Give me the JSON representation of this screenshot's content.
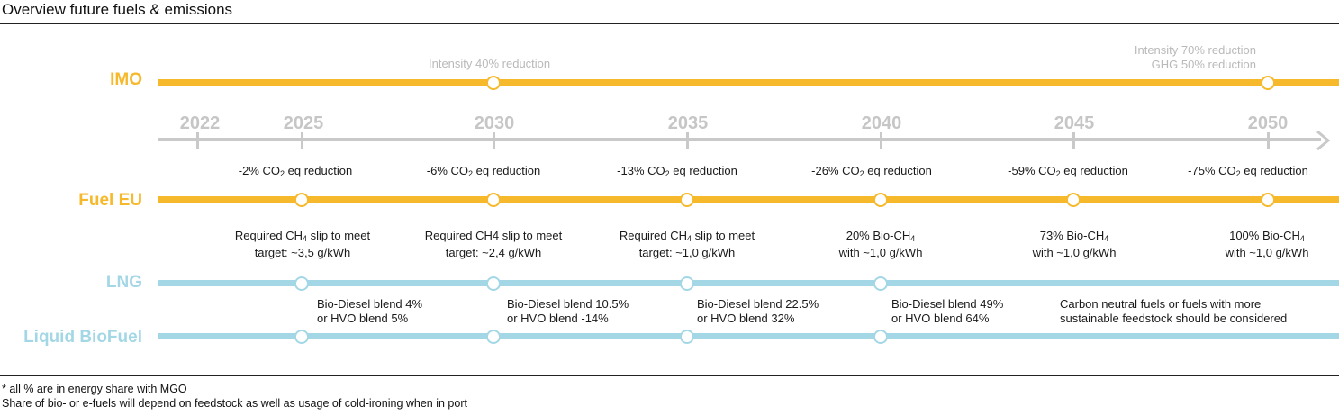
{
  "title": "Overview future fuels & emissions",
  "rows": {
    "imo": "IMO",
    "fuel_eu": "Fuel EU",
    "lng": "LNG",
    "biofuel": "Liquid BioFuel"
  },
  "years": [
    "2022",
    "2025",
    "2030",
    "2035",
    "2040",
    "2045",
    "2050"
  ],
  "imo_notes": {
    "n2030": "Intensity 40% reduction",
    "n2050_line1": "Intensity 70% reduction",
    "n2050_line2": "GHG 50% reduction"
  },
  "fuel_eu_reductions": [
    {
      "pre": "-2% CO",
      "sub": "2",
      "post": " eq reduction"
    },
    {
      "pre": "-6% CO",
      "sub": "2",
      "post": " eq reduction"
    },
    {
      "pre": "-13% CO",
      "sub": "2",
      "post": " eq reduction"
    },
    {
      "pre": "-26% CO",
      "sub": "2",
      "post": " eq reduction"
    },
    {
      "pre": "-59% CO",
      "sub": "2",
      "post": " eq reduction"
    },
    {
      "pre": "-75% CO",
      "sub": "2",
      "post": " eq reduction"
    }
  ],
  "lng_targets": [
    {
      "pre": "Required CH",
      "sub": "4",
      "post": " slip to meet",
      "line2": "target: ~3,5 g/kWh"
    },
    {
      "pre": "Required CH4 slip to meet",
      "sub": "",
      "post": "",
      "line2": "target: ~2,4 g/kWh"
    },
    {
      "pre": "Required CH",
      "sub": "4",
      "post": " slip to meet",
      "line2": "target: ~1,0 g/kWh"
    },
    {
      "pre": "20% Bio-CH",
      "sub": "4",
      "post": "",
      "line2": "with ~1,0 g/kWh"
    },
    {
      "pre": "73% Bio-CH",
      "sub": "4",
      "post": "",
      "line2": "with ~1,0 g/kWh"
    },
    {
      "pre": "100% Bio-CH",
      "sub": "4",
      "post": "",
      "line2": "with ~1,0 g/kWh"
    }
  ],
  "biofuel_blends": [
    {
      "line1": "Bio-Diesel blend 4%",
      "line2": "or HVO blend 5%"
    },
    {
      "line1": "Bio-Diesel blend 10.5%",
      "line2": "or HVO blend -14%"
    },
    {
      "line1": "Bio-Diesel blend 22.5%",
      "line2": "or HVO blend 32%"
    },
    {
      "line1": "Bio-Diesel blend 49%",
      "line2": "or HVO blend 64%"
    },
    {
      "line1": "Carbon neutral fuels or fuels with more",
      "line2": "sustainable feedstock should be considered"
    }
  ],
  "footer": {
    "line1": "* all % are in energy share with MGO",
    "line2": "Share of bio- or e-fuels will depend on feedstock as well as usage of cold-ironing when in port"
  },
  "colors": {
    "amber": "#f6b92b",
    "blue": "#a4d7e6",
    "axis": "#c9c9c9"
  }
}
